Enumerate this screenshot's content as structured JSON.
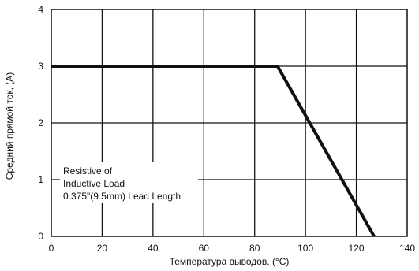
{
  "chart_data": {
    "type": "line",
    "title": "",
    "xlabel": "Температура выводов. (°C)",
    "ylabel": "Средний прямой ток, (A)",
    "xlim": [
      0,
      140
    ],
    "ylim": [
      0,
      4
    ],
    "x_ticks": [
      "0",
      "20",
      "40",
      "60",
      "80",
      "100",
      "120",
      "140"
    ],
    "y_ticks": [
      "0",
      "1",
      "2",
      "3",
      "4"
    ],
    "grid": true,
    "series": [
      {
        "x": [
          0,
          89,
          127
        ],
        "y": [
          3,
          3,
          0
        ]
      }
    ],
    "annotation": {
      "lines": [
        "Resistive of",
        "Inductive Load",
        "0.375\"(9.5mm) Lead Length"
      ]
    },
    "colors": {
      "line": "#111111",
      "grid": "#111111",
      "background": "#ffffff"
    }
  }
}
